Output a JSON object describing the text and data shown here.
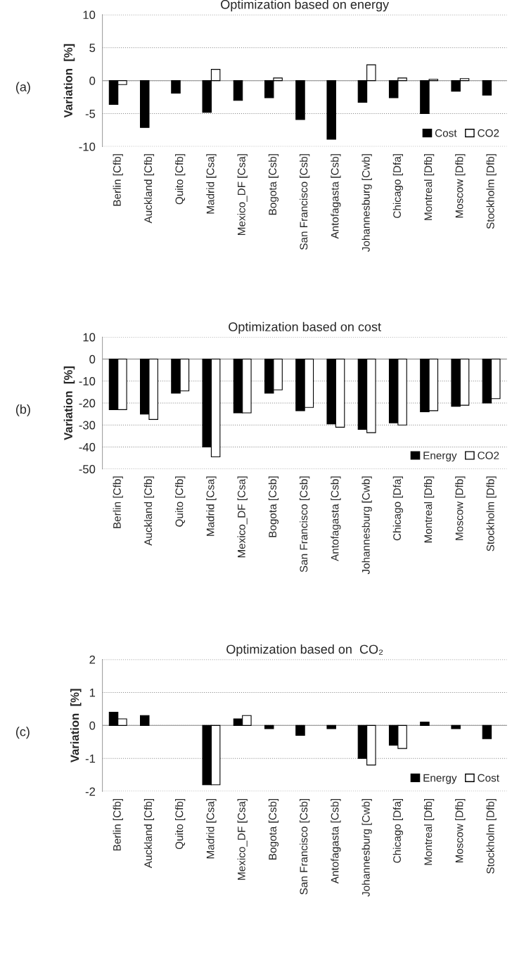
{
  "chart_data": [
    {
      "type": "bar",
      "title": "Optimization based on energy",
      "ylabel": "Variation  [%]",
      "annotations": [
        "(a)"
      ],
      "categories": [
        "Berlin [Cfb]",
        "Auckland [Cfb]",
        "Quito [Cfb]",
        "Madrid [Csa]",
        "Mexico_DF [Csa]",
        "Bogota [Csb]",
        "San Francisco [Csb]",
        "Antofagasta [Csb]",
        "Johannesburg [Cwb]",
        "Chicago [Dfa]",
        "Montreal [Dfb]",
        "Moscow [Dfb]",
        "Stockholm [Dfb]"
      ],
      "series": [
        {
          "name": "Cost",
          "color": "#000000",
          "values": [
            -3.6,
            -7.1,
            -1.9,
            -4.8,
            -3.0,
            -2.6,
            -5.9,
            -8.9,
            -3.3,
            -2.6,
            -5.0,
            -1.6,
            -2.2
          ]
        },
        {
          "name": "CO2",
          "color": "#ffffff",
          "values": [
            -0.6,
            null,
            null,
            1.7,
            null,
            0.4,
            null,
            null,
            2.4,
            0.4,
            0.2,
            0.3,
            null
          ]
        }
      ],
      "ylim": [
        -10,
        10
      ],
      "yticks": [
        -10,
        -5,
        0,
        5,
        10
      ],
      "grid": "y",
      "legend": "bottom right"
    },
    {
      "type": "bar",
      "title": "Optimization based on cost",
      "ylabel": "Variation  [%]",
      "annotations": [
        "(b)"
      ],
      "categories": [
        "Berlin [Cfb]",
        "Auckland [Cfb]",
        "Quito [Cfb]",
        "Madrid [Csa]",
        "Mexico_DF [Csa]",
        "Bogota [Csb]",
        "San Francisco [Csb]",
        "Antofagasta [Csb]",
        "Johannesburg [Cwb]",
        "Chicago [Dfa]",
        "Montreal [Dfb]",
        "Moscow [Dfb]",
        "Stockholm [Dfb]"
      ],
      "series": [
        {
          "name": "Energy",
          "color": "#000000",
          "values": [
            -23,
            -25,
            -15.5,
            -40,
            -24.5,
            -15.5,
            -23.5,
            -29.5,
            -32,
            -29,
            -24,
            -21.5,
            -20
          ]
        },
        {
          "name": "CO2",
          "color": "#ffffff",
          "values": [
            -23,
            -27.5,
            -14.5,
            -44.5,
            -24.5,
            -14,
            -22,
            -31,
            -33.5,
            -30,
            -23.5,
            -21,
            -18
          ]
        }
      ],
      "ylim": [
        -50,
        10
      ],
      "yticks": [
        -50,
        -40,
        -30,
        -20,
        -10,
        0,
        10
      ],
      "grid": "y",
      "legend": "bottom right"
    },
    {
      "type": "bar",
      "title": "Optimization based on  CO₂",
      "ylabel": "Variation  [%]",
      "annotations": [
        "(c)"
      ],
      "categories": [
        "Berlin [Cfb]",
        "Auckland [Cfb]",
        "Quito [Cfb]",
        "Madrid [Csa]",
        "Mexico_DF [Csa]",
        "Bogota [Csb]",
        "San Francisco [Csb]",
        "Antofagasta [Csb]",
        "Johannesburg [Cwb]",
        "Chicago [Dfa]",
        "Montreal [Dfb]",
        "Moscow [Dfb]",
        "Stockholm [Dfb]"
      ],
      "series": [
        {
          "name": "Energy",
          "color": "#000000",
          "values": [
            0.4,
            0.3,
            null,
            -1.8,
            0.2,
            -0.1,
            -0.3,
            -0.1,
            -1.0,
            -0.6,
            0.1,
            -0.1,
            -0.4
          ]
        },
        {
          "name": "Cost",
          "color": "#ffffff",
          "values": [
            0.2,
            null,
            null,
            -1.8,
            0.3,
            null,
            null,
            null,
            -1.2,
            -0.7,
            null,
            null,
            null
          ]
        }
      ],
      "ylim": [
        -2,
        2
      ],
      "yticks": [
        -2,
        -1,
        0,
        1,
        2
      ],
      "grid": "y",
      "legend": "bottom right"
    }
  ]
}
